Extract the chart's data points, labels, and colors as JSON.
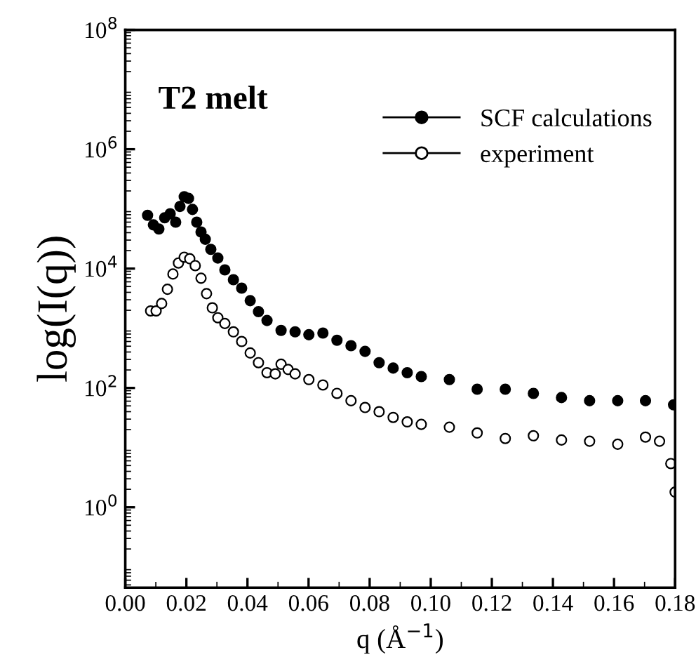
{
  "chart_data": {
    "type": "scatter",
    "title": "T2 melt",
    "xlabel": "q (Å$^{−1}$)",
    "ylabel": "log(I(q))",
    "log": "y",
    "legend": "top right",
    "grid": false,
    "xlim": [
      0.0,
      0.18
    ],
    "xticks": [
      {
        "value": 0.0,
        "label": "0.00"
      },
      {
        "value": 0.02,
        "label": "0.02"
      },
      {
        "value": 0.04,
        "label": "0.04"
      },
      {
        "value": 0.06,
        "label": "0.06"
      },
      {
        "value": 0.08,
        "label": "0.08"
      },
      {
        "value": 0.1,
        "label": "0.10"
      },
      {
        "value": 0.12,
        "label": "0.12"
      },
      {
        "value": 0.14,
        "label": "0.14"
      },
      {
        "value": 0.16,
        "label": "0.16"
      },
      {
        "value": 0.18,
        "label": "0.18"
      }
    ],
    "ylim": [
      0.045,
      100000000
    ],
    "yticks": [
      {
        "value": 1,
        "label": "10$^{0}$"
      },
      {
        "value": 100,
        "label": "10$^{2}$"
      },
      {
        "value": 10000,
        "label": "10$^{4}$"
      },
      {
        "value": 1000000,
        "label": "10$^{6}$"
      },
      {
        "value": 100000000,
        "label": "10$^{8}$"
      }
    ],
    "series": [
      {
        "name": "SCF calculations",
        "color": "#000000",
        "marker": "circle",
        "x": [
          0.0073,
          0.0092,
          0.011,
          0.0129,
          0.0147,
          0.0165,
          0.0179,
          0.0193,
          0.0207,
          0.022,
          0.0234,
          0.0248,
          0.0262,
          0.028,
          0.0303,
          0.0326,
          0.0354,
          0.0381,
          0.0409,
          0.0436,
          0.0464,
          0.051,
          0.0556,
          0.0601,
          0.0647,
          0.0693,
          0.0739,
          0.0785,
          0.0831,
          0.0877,
          0.0923,
          0.0969,
          0.1061,
          0.1152,
          0.1244,
          0.1336,
          0.1428,
          0.152,
          0.1612,
          0.1703,
          0.1795
        ],
        "values": [
          78000,
          54000,
          46000,
          71000,
          83000,
          60000,
          110000,
          160000,
          150000,
          98000,
          60000,
          41000,
          31000,
          21000,
          15000,
          9500,
          6500,
          4700,
          2900,
          1900,
          1350,
          920,
          870,
          780,
          830,
          630,
          510,
          410,
          265,
          215,
          180,
          155,
          138,
          95,
          95,
          81,
          69,
          61,
          61,
          61,
          52
        ]
      },
      {
        "name": "experiment",
        "color": "#ffffff",
        "marker": "circle",
        "x": [
          0.0083,
          0.0101,
          0.0119,
          0.0138,
          0.0156,
          0.0174,
          0.0193,
          0.0211,
          0.0229,
          0.0248,
          0.0266,
          0.0285,
          0.0303,
          0.0326,
          0.0354,
          0.0381,
          0.0409,
          0.0436,
          0.0464,
          0.0491,
          0.051,
          0.0533,
          0.0556,
          0.0601,
          0.0647,
          0.0693,
          0.0739,
          0.0785,
          0.0831,
          0.0877,
          0.0923,
          0.0969,
          0.1061,
          0.1152,
          0.1244,
          0.1336,
          0.1428,
          0.152,
          0.1612,
          0.1703,
          0.1749,
          0.1786,
          0.18
        ],
        "values": [
          1950,
          1950,
          2600,
          4500,
          8100,
          12400,
          15500,
          14600,
          11200,
          6900,
          3800,
          2200,
          1500,
          1200,
          870,
          600,
          385,
          265,
          180,
          172,
          250,
          204,
          172,
          138,
          112,
          81,
          61,
          47,
          40,
          32,
          27,
          24.5,
          22,
          17.6,
          14.2,
          15.8,
          13.4,
          12.8,
          11.4,
          15,
          12.8,
          5.4,
          1.8
        ]
      }
    ]
  }
}
